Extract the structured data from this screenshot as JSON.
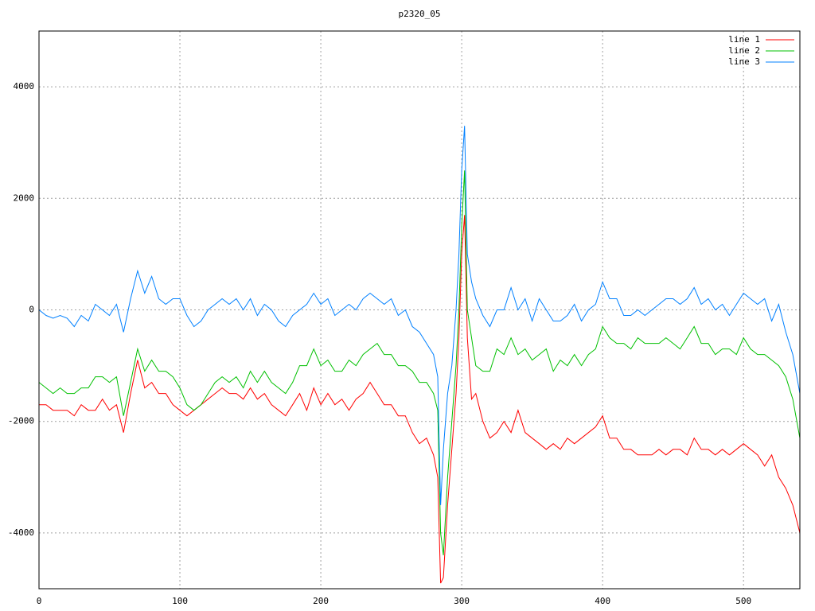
{
  "chart_data": {
    "type": "line",
    "title": "p2320_05",
    "x": [
      0,
      5,
      10,
      15,
      20,
      25,
      30,
      35,
      40,
      45,
      50,
      55,
      60,
      65,
      70,
      75,
      80,
      85,
      90,
      95,
      100,
      105,
      110,
      115,
      120,
      125,
      130,
      135,
      140,
      145,
      150,
      155,
      160,
      165,
      170,
      175,
      180,
      185,
      190,
      195,
      200,
      205,
      210,
      215,
      220,
      225,
      230,
      235,
      240,
      245,
      250,
      255,
      260,
      265,
      270,
      275,
      280,
      283,
      285,
      287,
      290,
      293,
      296,
      298,
      300,
      302,
      304,
      307,
      310,
      315,
      320,
      325,
      330,
      335,
      340,
      345,
      350,
      355,
      360,
      365,
      370,
      375,
      380,
      385,
      390,
      395,
      400,
      405,
      410,
      415,
      420,
      425,
      430,
      435,
      440,
      445,
      450,
      455,
      460,
      465,
      470,
      475,
      480,
      485,
      490,
      495,
      500,
      505,
      510,
      515,
      520,
      525,
      530,
      535,
      540
    ],
    "series": [
      {
        "name": "line 1",
        "color": "#ff0000",
        "values": [
          -1700,
          -1700,
          -1800,
          -1800,
          -1800,
          -1900,
          -1700,
          -1800,
          -1800,
          -1600,
          -1800,
          -1700,
          -2200,
          -1500,
          -900,
          -1400,
          -1300,
          -1500,
          -1500,
          -1700,
          -1800,
          -1900,
          -1800,
          -1700,
          -1600,
          -1500,
          -1400,
          -1500,
          -1500,
          -1600,
          -1400,
          -1600,
          -1500,
          -1700,
          -1800,
          -1900,
          -1700,
          -1500,
          -1800,
          -1400,
          -1700,
          -1500,
          -1700,
          -1600,
          -1800,
          -1600,
          -1500,
          -1300,
          -1500,
          -1700,
          -1700,
          -1900,
          -1900,
          -2200,
          -2400,
          -2300,
          -2600,
          -3000,
          -4900,
          -4800,
          -3500,
          -2500,
          -1500,
          -500,
          1000,
          1700,
          -500,
          -1600,
          -1500,
          -2000,
          -2300,
          -2200,
          -2000,
          -2200,
          -1800,
          -2200,
          -2300,
          -2400,
          -2500,
          -2400,
          -2500,
          -2300,
          -2400,
          -2300,
          -2200,
          -2100,
          -1900,
          -2300,
          -2300,
          -2500,
          -2500,
          -2600,
          -2600,
          -2600,
          -2500,
          -2600,
          -2500,
          -2500,
          -2600,
          -2300,
          -2500,
          -2500,
          -2600,
          -2500,
          -2600,
          -2500,
          -2400,
          -2500,
          -2600,
          -2800,
          -2600,
          -3000,
          -3200,
          -3500,
          -4000
        ]
      },
      {
        "name": "line 2",
        "color": "#00c000",
        "values": [
          -1300,
          -1400,
          -1500,
          -1400,
          -1500,
          -1500,
          -1400,
          -1400,
          -1200,
          -1200,
          -1300,
          -1200,
          -1900,
          -1300,
          -700,
          -1100,
          -900,
          -1100,
          -1100,
          -1200,
          -1400,
          -1700,
          -1800,
          -1700,
          -1500,
          -1300,
          -1200,
          -1300,
          -1200,
          -1400,
          -1100,
          -1300,
          -1100,
          -1300,
          -1400,
          -1500,
          -1300,
          -1000,
          -1000,
          -700,
          -1000,
          -900,
          -1100,
          -1100,
          -900,
          -1000,
          -800,
          -700,
          -600,
          -800,
          -800,
          -1000,
          -1000,
          -1100,
          -1300,
          -1300,
          -1500,
          -1800,
          -4000,
          -4400,
          -3000,
          -2000,
          -1000,
          0,
          1500,
          2500,
          0,
          -500,
          -1000,
          -1100,
          -1100,
          -700,
          -800,
          -500,
          -800,
          -700,
          -900,
          -800,
          -700,
          -1100,
          -900,
          -1000,
          -800,
          -1000,
          -800,
          -700,
          -300,
          -500,
          -600,
          -600,
          -700,
          -500,
          -600,
          -600,
          -600,
          -500,
          -600,
          -700,
          -500,
          -300,
          -600,
          -600,
          -800,
          -700,
          -700,
          -800,
          -500,
          -700,
          -800,
          -800,
          -900,
          -1000,
          -1200,
          -1600,
          -2300
        ]
      },
      {
        "name": "line 3",
        "color": "#0080ff",
        "values": [
          0,
          -100,
          -150,
          -100,
          -150,
          -300,
          -100,
          -200,
          100,
          0,
          -100,
          100,
          -400,
          200,
          700,
          300,
          600,
          200,
          100,
          200,
          200,
          -100,
          -300,
          -200,
          0,
          100,
          200,
          100,
          200,
          0,
          200,
          -100,
          100,
          0,
          -200,
          -300,
          -100,
          0,
          100,
          300,
          100,
          200,
          -100,
          0,
          100,
          0,
          200,
          300,
          200,
          100,
          200,
          -100,
          0,
          -300,
          -400,
          -600,
          -800,
          -1200,
          -3500,
          -2500,
          -1500,
          -1000,
          0,
          1000,
          2500,
          3300,
          1000,
          500,
          200,
          -100,
          -300,
          0,
          0,
          400,
          0,
          200,
          -200,
          200,
          0,
          -200,
          -200,
          -100,
          100,
          -200,
          0,
          100,
          500,
          200,
          200,
          -100,
          -100,
          0,
          -100,
          0,
          100,
          200,
          200,
          100,
          200,
          400,
          100,
          200,
          0,
          100,
          -100,
          100,
          300,
          200,
          100,
          200,
          -200,
          100,
          -400,
          -800,
          -1500
        ]
      }
    ],
    "xlim": [
      0,
      540
    ],
    "xticks": [
      0,
      100,
      200,
      300,
      400,
      500
    ],
    "ylim": [
      -5000,
      5000
    ],
    "yticks": [
      -4000,
      -2000,
      0,
      2000,
      4000
    ],
    "grid": true,
    "legend": "top-right"
  }
}
